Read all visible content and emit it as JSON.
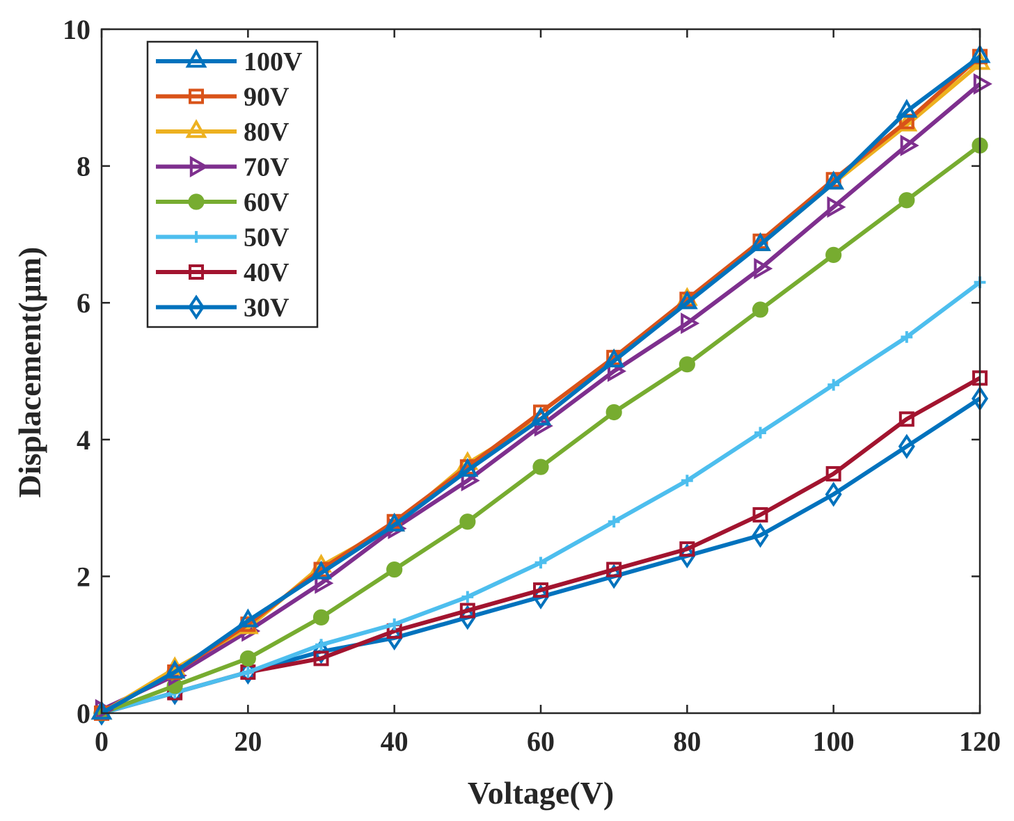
{
  "chart_data": {
    "type": "line",
    "title": "",
    "xlabel": "Voltage(V)",
    "ylabel": "Displacement(μm)",
    "xlim": [
      0,
      120
    ],
    "ylim": [
      0,
      10
    ],
    "x_ticks": [
      0,
      20,
      40,
      60,
      80,
      100,
      120
    ],
    "y_ticks": [
      0,
      2,
      4,
      6,
      8,
      10
    ],
    "grid": false,
    "legend_position": "top-left",
    "x": [
      0,
      10,
      20,
      30,
      40,
      50,
      60,
      70,
      80,
      90,
      100,
      110,
      120
    ],
    "series": [
      {
        "name": "100V",
        "color": "#0072BD",
        "marker": "triangle-up",
        "values": [
          0,
          0.6,
          1.35,
          2.05,
          2.75,
          3.55,
          4.3,
          5.15,
          6.0,
          6.85,
          7.75,
          8.8,
          9.6
        ]
      },
      {
        "name": "90V",
        "color": "#D95319",
        "marker": "square-open",
        "values": [
          0,
          0.6,
          1.3,
          2.1,
          2.8,
          3.6,
          4.4,
          5.2,
          6.05,
          6.9,
          7.8,
          8.65,
          9.6
        ]
      },
      {
        "name": "80V",
        "color": "#EDB120",
        "marker": "triangle-up",
        "values": [
          0,
          0.65,
          1.25,
          2.15,
          2.75,
          3.65,
          4.3,
          5.15,
          6.05,
          6.85,
          7.75,
          8.6,
          9.5
        ]
      },
      {
        "name": "70V",
        "color": "#7E2F8E",
        "marker": "triangle-right",
        "values": [
          0.05,
          0.55,
          1.2,
          1.9,
          2.7,
          3.4,
          4.2,
          5.0,
          5.7,
          6.5,
          7.4,
          8.3,
          9.2
        ]
      },
      {
        "name": "60V",
        "color": "#77AC30",
        "marker": "circle",
        "values": [
          0,
          0.4,
          0.8,
          1.4,
          2.1,
          2.8,
          3.6,
          4.4,
          5.1,
          5.9,
          6.7,
          7.5,
          8.3
        ]
      },
      {
        "name": "50V",
        "color": "#4DBEEE",
        "marker": "plus",
        "values": [
          0,
          0.3,
          0.6,
          1.0,
          1.3,
          1.7,
          2.2,
          2.8,
          3.4,
          4.1,
          4.8,
          5.5,
          6.3
        ]
      },
      {
        "name": "40V",
        "color": "#A2142F",
        "marker": "square-open",
        "values": [
          0,
          0.3,
          0.6,
          0.8,
          1.2,
          1.5,
          1.8,
          2.1,
          2.4,
          2.9,
          3.5,
          4.3,
          4.9
        ]
      },
      {
        "name": "30V",
        "color": "#0072BD",
        "marker": "diamond",
        "values": [
          0,
          0.3,
          0.6,
          0.9,
          1.1,
          1.4,
          1.7,
          2.0,
          2.3,
          2.6,
          3.2,
          3.9,
          4.6
        ]
      }
    ]
  }
}
